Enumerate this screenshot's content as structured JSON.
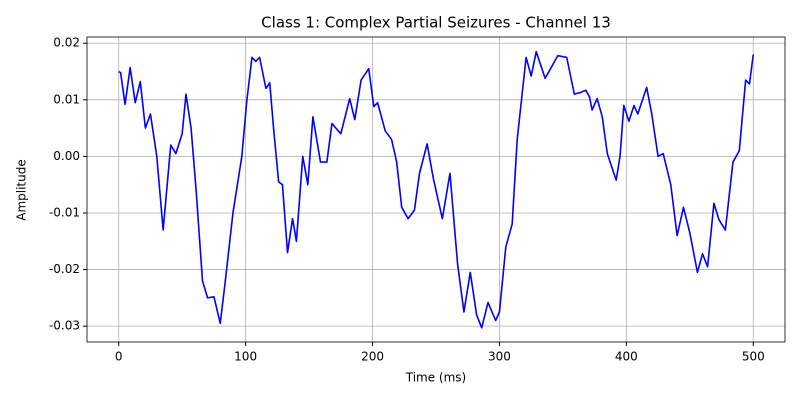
{
  "chart_data": {
    "type": "line",
    "title": "Class 1: Complex Partial Seizures - Channel 13",
    "x_label": "Time (ms)",
    "y_label": "Amplitude",
    "x": [
      0,
      1.5,
      5,
      9,
      13,
      17,
      21,
      25,
      30,
      35,
      41,
      45,
      50,
      53,
      57,
      61,
      66,
      70,
      75,
      80,
      84,
      90,
      97,
      101,
      105,
      108,
      111,
      116,
      119,
      122,
      126,
      129,
      133,
      137,
      140,
      145,
      149,
      153,
      159,
      164,
      168,
      175,
      182,
      186,
      191,
      197,
      201,
      204,
      210,
      215,
      219,
      223,
      228,
      233,
      237,
      243,
      248,
      255,
      261,
      267,
      272,
      277,
      282,
      286,
      291,
      297,
      300,
      305,
      310,
      314,
      321,
      325,
      329,
      336,
      346,
      353,
      359,
      364,
      368,
      371,
      373,
      377,
      381,
      385,
      392,
      395,
      398,
      402,
      406,
      409,
      416,
      420,
      425,
      429,
      435,
      440,
      445,
      450,
      456,
      460,
      464,
      469,
      473,
      478,
      484,
      489,
      494,
      497,
      500
    ],
    "series": [
      {
        "name": "Channel 13",
        "color": "#0000ff",
        "values": [
          0.015,
          0.0148,
          0.0092,
          0.0157,
          0.0095,
          0.0132,
          0.005,
          0.0075,
          0.0,
          -0.013,
          0.002,
          0.0005,
          0.004,
          0.011,
          0.005,
          -0.006,
          -0.022,
          -0.025,
          -0.0248,
          -0.0295,
          -0.022,
          -0.01,
          0.0,
          0.01,
          0.0175,
          0.0168,
          0.0175,
          0.012,
          0.013,
          0.005,
          -0.0045,
          -0.005,
          -0.017,
          -0.011,
          -0.015,
          0.0,
          -0.005,
          0.007,
          -0.001,
          -0.001,
          0.0058,
          0.004,
          0.0102,
          0.0065,
          0.0135,
          0.0155,
          0.0088,
          0.0095,
          0.0045,
          0.003,
          -0.001,
          -0.009,
          -0.011,
          -0.0095,
          -0.003,
          0.0022,
          -0.004,
          -0.011,
          -0.003,
          -0.019,
          -0.0275,
          -0.0205,
          -0.028,
          -0.0303,
          -0.0258,
          -0.029,
          -0.0275,
          -0.016,
          -0.012,
          0.003,
          0.0175,
          0.0142,
          0.0185,
          0.0138,
          0.0178,
          0.0175,
          0.011,
          0.0113,
          0.0117,
          0.0105,
          0.0082,
          0.0102,
          0.007,
          0.0005,
          -0.0042,
          0.0,
          0.009,
          0.0062,
          0.009,
          0.0075,
          0.0122,
          0.0075,
          0.0,
          0.0005,
          -0.005,
          -0.014,
          -0.009,
          -0.0135,
          -0.0205,
          -0.0172,
          -0.0195,
          -0.0083,
          -0.0112,
          -0.013,
          -0.001,
          0.001,
          0.0135,
          0.0128,
          0.018
        ]
      }
    ],
    "xlim": [
      -25,
      525
    ],
    "xticks": [
      0,
      100,
      200,
      300,
      400,
      500
    ],
    "ylim": [
      -0.0328,
      0.0211
    ],
    "yticks": [
      -0.03,
      -0.02,
      -0.01,
      {
        "value": 0,
        "label": "0.00"
      },
      0.01,
      0.02
    ],
    "grid": true
  }
}
